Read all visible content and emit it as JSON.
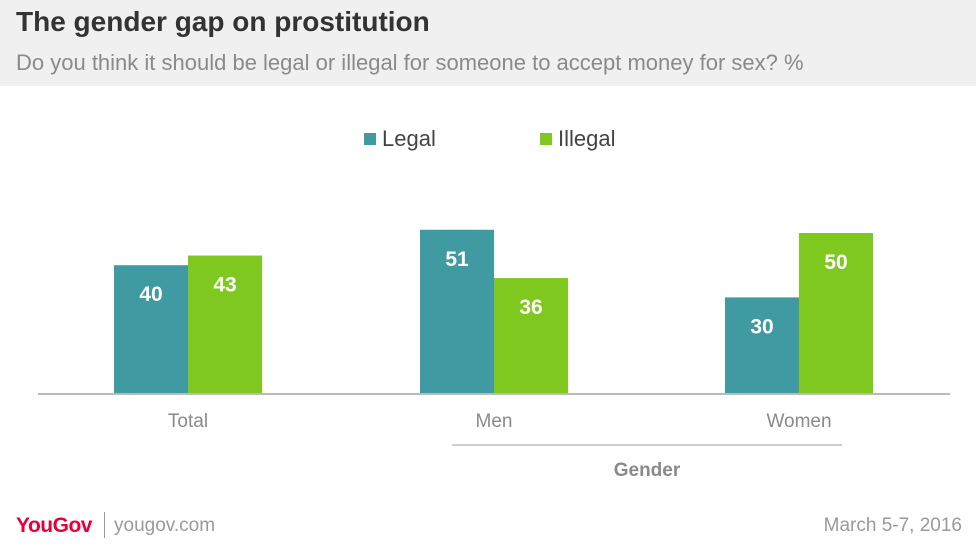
{
  "header": {
    "title": "The gender gap on prostitution",
    "subtitle": "Do you think it should be legal or illegal for someone to accept money for sex? %"
  },
  "footer": {
    "brand": "YouGov",
    "site": "yougov.com",
    "date": "March 5-7, 2016"
  },
  "colors": {
    "legal": "#3f9aa1",
    "illegal": "#7ec81f",
    "axis": "#bbbbbb",
    "tick_text": "#8a8a8a",
    "header_bg": "#f0f0f0",
    "brand": "#e4003b"
  },
  "chart_data": {
    "type": "bar",
    "categories": [
      "Total",
      "Men",
      "Women"
    ],
    "group_label": "Gender",
    "group_members": [
      "Men",
      "Women"
    ],
    "series": [
      {
        "name": "Legal",
        "values": [
          40,
          51,
          30
        ]
      },
      {
        "name": "Illegal",
        "values": [
          43,
          36,
          50
        ]
      }
    ],
    "ylim": [
      0,
      55
    ],
    "legend": "top-center",
    "grid": false
  }
}
